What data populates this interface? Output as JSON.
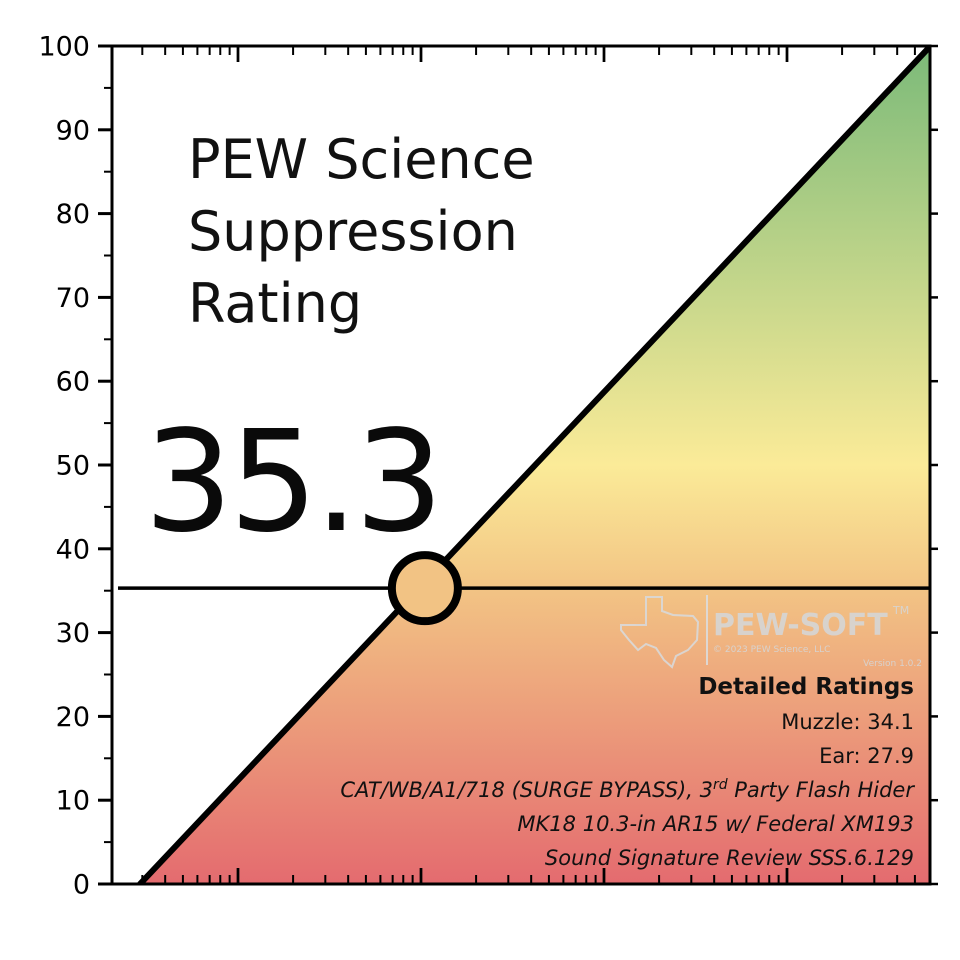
{
  "chart_data": {
    "type": "line",
    "title": "PEW Science Suppression Rating",
    "title_lines": [
      "PEW Science",
      "Suppression",
      "Rating"
    ],
    "rating": "35.3",
    "rating_value": 35.3,
    "ylim": [
      0,
      100
    ],
    "yticks": [
      0,
      10,
      20,
      30,
      40,
      50,
      60,
      70,
      80,
      90,
      100
    ],
    "xscale": "log",
    "xlabel": "",
    "ylabel": "",
    "series": [
      {
        "name": "rating-line",
        "x": [
          0,
          100
        ],
        "y": [
          0,
          100
        ]
      },
      {
        "name": "threshold",
        "y": 35.3
      }
    ],
    "gradient": [
      {
        "at": 0,
        "color": "#e46b6f"
      },
      {
        "at": 35,
        "color": "#f2c384"
      },
      {
        "at": 50,
        "color": "#fbeb98"
      },
      {
        "at": 100,
        "color": "#7bba79"
      }
    ],
    "marker": {
      "y": 35.3,
      "fill": "#f2c384"
    },
    "detailed": {
      "heading": "Detailed Ratings",
      "muzzle": "Muzzle: 34.1",
      "ear": "Ear: 27.9",
      "config_pre": "CAT/WB/A1/718 (SURGE BYPASS), 3",
      "config_sup": "rd",
      "config_post": " Party Flash Hider",
      "host": "MK18 10.3-in AR15 w/ Federal XM193",
      "review": "Sound Signature Review SSS.6.129"
    },
    "watermark": {
      "brand": "PEW-SOFT",
      "tm": "TM",
      "copyright": "© 2023 PEW Science, LLC",
      "version": "Version 1.0.2"
    }
  }
}
